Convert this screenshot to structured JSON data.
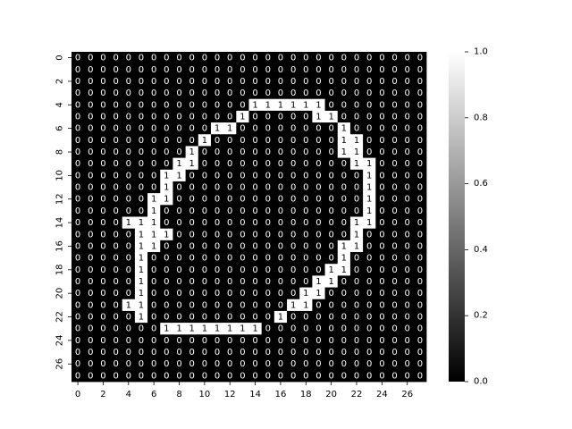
{
  "chart_data": {
    "type": "heatmap",
    "title": "",
    "xlabel": "",
    "ylabel": "",
    "rows": 28,
    "cols": 28,
    "x_tick_labels": [
      "0",
      "2",
      "4",
      "6",
      "8",
      "10",
      "12",
      "14",
      "16",
      "18",
      "20",
      "22",
      "24",
      "26"
    ],
    "y_tick_labels": [
      "0",
      "2",
      "4",
      "6",
      "8",
      "10",
      "12",
      "14",
      "16",
      "18",
      "20",
      "22",
      "24",
      "26"
    ],
    "colorbar": {
      "min": 0.0,
      "max": 1.0,
      "tick_labels": [
        "0.0",
        "0.2",
        "0.4",
        "0.6",
        "0.8",
        "1.0"
      ],
      "colormap": "gray",
      "low_color": "#000000",
      "high_color": "#ffffff"
    },
    "ones": [
      [
        4,
        14
      ],
      [
        4,
        15
      ],
      [
        4,
        16
      ],
      [
        4,
        17
      ],
      [
        4,
        18
      ],
      [
        4,
        19
      ],
      [
        5,
        13
      ],
      [
        5,
        19
      ],
      [
        5,
        20
      ],
      [
        6,
        11
      ],
      [
        6,
        12
      ],
      [
        6,
        21
      ],
      [
        7,
        10
      ],
      [
        7,
        21
      ],
      [
        7,
        22
      ],
      [
        8,
        9
      ],
      [
        8,
        21
      ],
      [
        8,
        22
      ],
      [
        9,
        8
      ],
      [
        9,
        9
      ],
      [
        9,
        22
      ],
      [
        9,
        23
      ],
      [
        10,
        7
      ],
      [
        10,
        8
      ],
      [
        10,
        23
      ],
      [
        11,
        7
      ],
      [
        11,
        23
      ],
      [
        12,
        6
      ],
      [
        12,
        7
      ],
      [
        12,
        23
      ],
      [
        13,
        6
      ],
      [
        13,
        23
      ],
      [
        14,
        4
      ],
      [
        14,
        5
      ],
      [
        14,
        6
      ],
      [
        14,
        22
      ],
      [
        14,
        23
      ],
      [
        15,
        5
      ],
      [
        15,
        6
      ],
      [
        15,
        7
      ],
      [
        15,
        22
      ],
      [
        16,
        5
      ],
      [
        16,
        6
      ],
      [
        16,
        21
      ],
      [
        16,
        22
      ],
      [
        17,
        5
      ],
      [
        17,
        21
      ],
      [
        18,
        5
      ],
      [
        18,
        20
      ],
      [
        18,
        21
      ],
      [
        19,
        5
      ],
      [
        19,
        19
      ],
      [
        19,
        20
      ],
      [
        20,
        5
      ],
      [
        20,
        18
      ],
      [
        20,
        19
      ],
      [
        21,
        4
      ],
      [
        21,
        5
      ],
      [
        21,
        17
      ],
      [
        21,
        18
      ],
      [
        22,
        5
      ],
      [
        22,
        16
      ],
      [
        23,
        7
      ],
      [
        23,
        8
      ],
      [
        23,
        9
      ],
      [
        23,
        10
      ],
      [
        23,
        11
      ],
      [
        23,
        12
      ],
      [
        23,
        13
      ],
      [
        23,
        14
      ]
    ],
    "grid": false
  }
}
